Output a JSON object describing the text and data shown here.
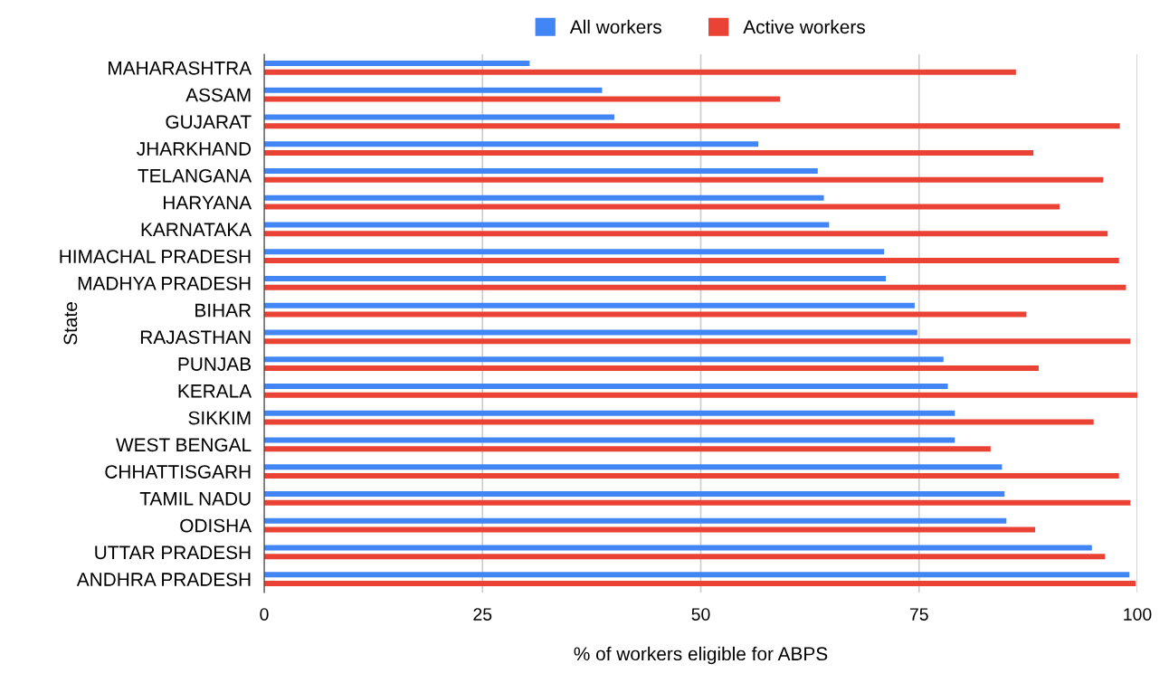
{
  "chart_data": {
    "type": "bar",
    "orientation": "horizontal",
    "xlabel": "% of workers eligible for ABPS",
    "ylabel": "State",
    "categories": [
      "MAHARASHTRA",
      "ASSAM",
      "GUJARAT",
      "JHARKHAND",
      "TELANGANA",
      "HARYANA",
      "KARNATAKA",
      "HIMACHAL PRADESH",
      "MADHYA PRADESH",
      "BIHAR",
      "RAJASTHAN",
      "PUNJAB",
      "KERALA",
      "SIKKIM",
      "WEST BENGAL",
      "CHHATTISGARH",
      "TAMIL NADU",
      "ODISHA",
      "UTTAR PRADESH",
      "ANDHRA PRADESH"
    ],
    "series": [
      {
        "name": "All workers",
        "color": "#4285f4",
        "values": [
          30.4,
          38.7,
          40.1,
          56.6,
          63.4,
          64.1,
          64.7,
          71.0,
          71.2,
          74.5,
          74.8,
          77.8,
          78.3,
          79.1,
          79.1,
          84.5,
          84.8,
          85.0,
          94.8,
          99.1
        ]
      },
      {
        "name": "Active workers",
        "color": "#ea4335",
        "values": [
          86.1,
          59.1,
          98.0,
          88.1,
          96.1,
          91.1,
          96.6,
          97.9,
          98.7,
          87.3,
          99.2,
          88.7,
          100,
          95.0,
          83.2,
          97.9,
          99.2,
          88.3,
          96.3,
          99.8
        ]
      }
    ],
    "xlim": [
      0,
      100
    ],
    "xticks": [
      0,
      25,
      50,
      75,
      100
    ],
    "grid": "x",
    "legend": "top"
  }
}
